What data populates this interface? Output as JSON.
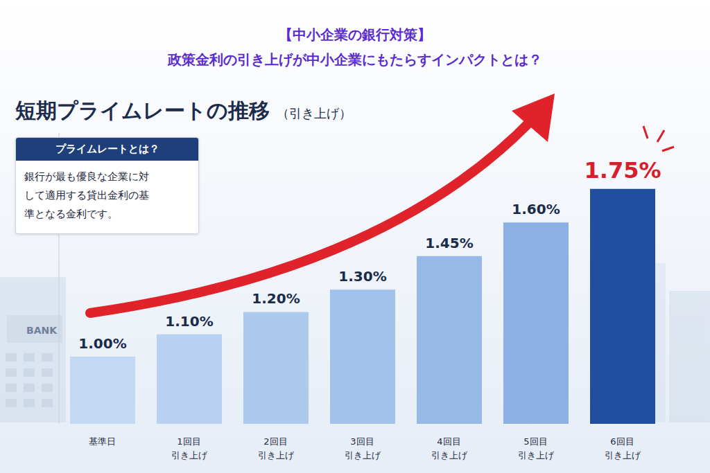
{
  "chart_data": {
    "type": "bar",
    "supertitle": [
      "【中小企業の銀行対策】",
      "政策金利の引き上げが中小企業にもたらすインパクトとは？"
    ],
    "title": "短期プライムレートの推移",
    "subtitle": "（引き上げ）",
    "annotations": [
      {
        "title": "プライムレートとは？",
        "text": "銀行が最も優良な企業に対して適用する貸出金利の基準となる金利です。"
      },
      {
        "text": "BANK"
      }
    ],
    "categories": [
      "基準日",
      "1回目\n引き上げ",
      "2回目\n引き上げ",
      "3回目\n引き上げ",
      "4回目\n引き上げ",
      "5回目\n引き上げ",
      "6回目\n引き上げ"
    ],
    "values": [
      1.0,
      1.1,
      1.2,
      1.3,
      1.45,
      1.6,
      1.75
    ],
    "value_labels": [
      "1.00%",
      "1.10%",
      "1.20%",
      "1.30%",
      "1.45%",
      "1.60%",
      "1.75%"
    ],
    "data_labels": true,
    "colors": [
      "#c3d8f2",
      "#b8d1f0",
      "#adc9ee",
      "#a2c1eb",
      "#97b9e8",
      "#8bb0e4",
      "#1f4f9e"
    ],
    "ylim": [
      0.7,
      2.0
    ],
    "tick_labels": false,
    "grid": false
  }
}
